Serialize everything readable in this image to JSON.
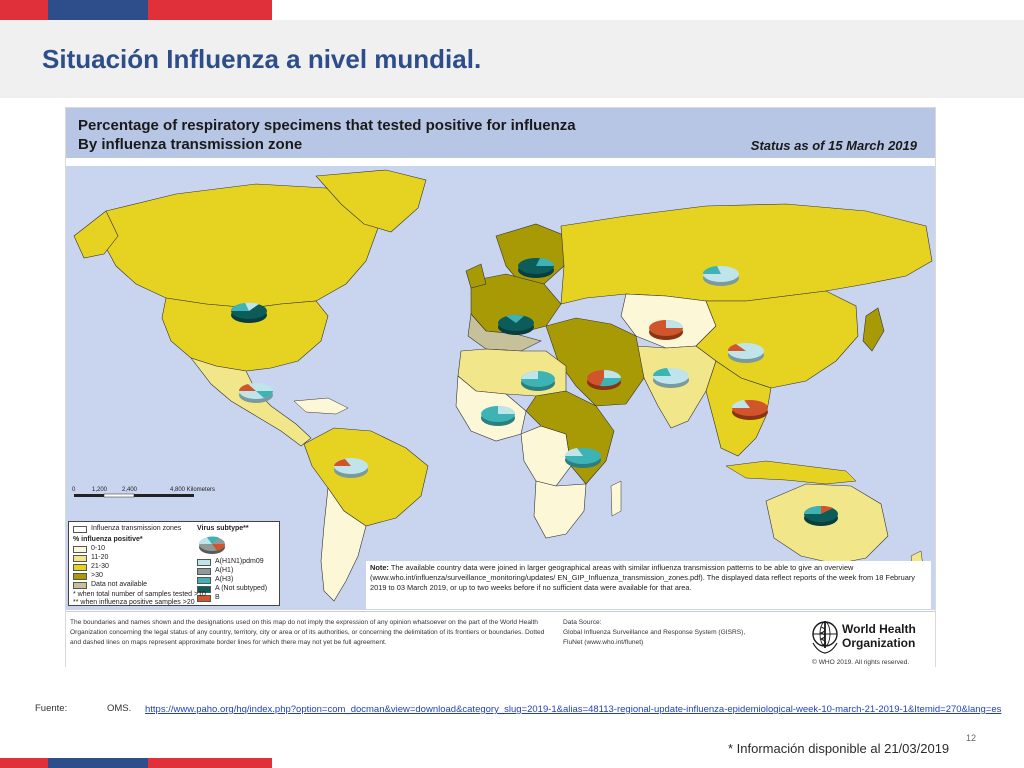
{
  "colors": {
    "red": "#e0303a",
    "blue": "#2d4e8a",
    "ocean": "#c9d5ee",
    "header_band": "#b7c6e5",
    "land_0_10": "#fbf7d7",
    "land_11_20": "#f2e68a",
    "land_21_30": "#e6d221",
    "land_gt_30": "#a89a05",
    "land_not_available": "#c6c09b",
    "pie_h1n1pdm09": "#bfe4e9",
    "pie_h1": "#8f9b9b",
    "pie_h3": "#3db3b5",
    "pie_a_not_subtyped": "#0c5c5a",
    "pie_b": "#d1552a"
  },
  "slide": {
    "title": "Situación Influenza a nivel mundial."
  },
  "map": {
    "title_line1": "Percentage of respiratory specimens that tested positive for influenza",
    "title_line2": "By influenza transmission zone",
    "status": "Status as of 15 March 2019",
    "scale_ticks": [
      "0",
      "1,200",
      "2,400",
      "4,800 Kilometers"
    ],
    "legend": {
      "zones_label": "Influenza transmission zones",
      "virus_subtype_label": "Virus subtype**",
      "percent_label": "% influenza positive*",
      "percent_items": [
        "0-10",
        "11-20",
        "21-30",
        ">30",
        "Data not available"
      ],
      "subtype_items": [
        "A(H1N1)pdm09",
        "A(H1)",
        "A(H3)",
        "A (Not subtyped)",
        "B"
      ],
      "footnote_1": "*   when total number of samples tested >10",
      "footnote_2": "** when influenza positive samples >20"
    },
    "note_label": "Note:",
    "note_text": "The available country data were joined in larger geographical areas with similar influenza transmission patterns to be able to give an overview (www.who.int/influenza/surveillance_monitoring/updates/ EN_GIP_Influenza_transmission_zones.pdf). The displayed data reflect reports of the week from 18 February 2019 to 03 March 2019, or up to two weeks before if no sufficient data were available for that area.",
    "disclaimer": "The boundaries and names shown and the designations used on this map do not imply the expression of any opinion whatsoever on the part of the World Health Organization concerning the legal status of any country, territory, city or area or of its authorities, or concerning the delimitation of its frontiers or boundaries. Dotted and dashed lines on maps represent approximate border lines for which there may not yet be full agreement.",
    "data_source_line1": "Data Source:",
    "data_source_line2": "Global Influenza Surveillance and Response System (GISRS),",
    "data_source_line3": "FluNet (www.who.int/flunet)",
    "who_name_line1": "World Health",
    "who_name_line2": "Organization",
    "who_copyright": "© WHO 2019. All rights reserved."
  },
  "footer": {
    "fuente_label": "Fuente:",
    "fuente_source": "OMS.",
    "fuente_url": "https://www.paho.org/hq/index.php?option=com_docman&view=download&category_slug=2019-1&alias=48113-regional-update-influenza-epidemiological-week-10-march-21-2019-1&Itemid=270&lang=es",
    "info_note": "* Información disponible al 21/03/2019",
    "page_number": "12"
  }
}
